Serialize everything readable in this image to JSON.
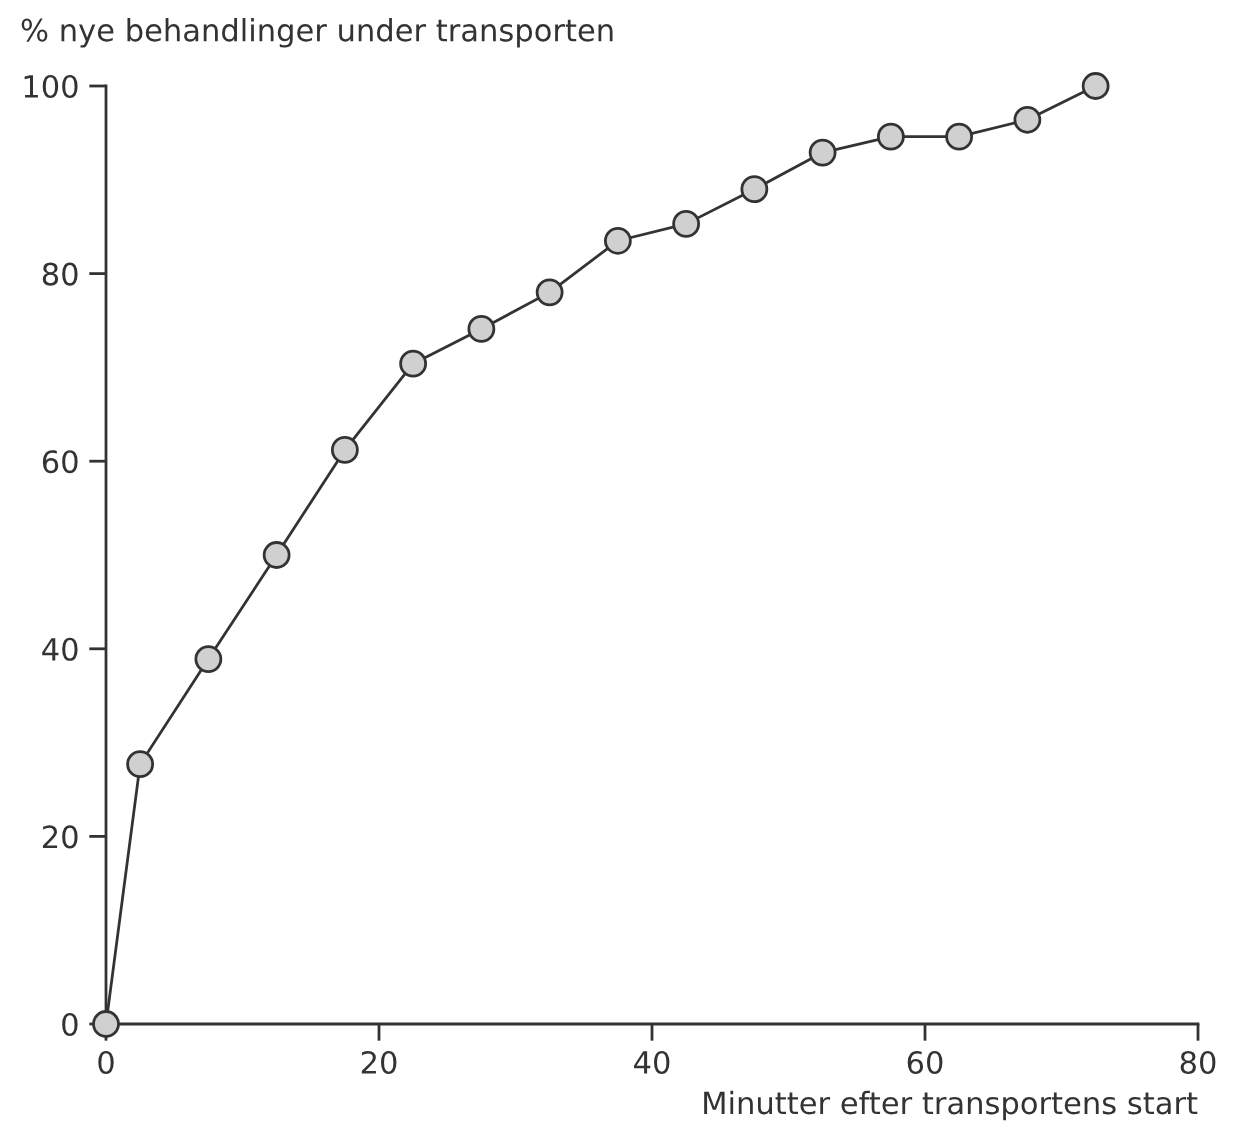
{
  "chart_data": {
    "type": "line",
    "xlabel": "Minutter efter transportens start",
    "ylabel": "% nye behandlinger under transporten",
    "x": [
      0,
      2.5,
      7.5,
      12.5,
      17.5,
      22.5,
      27.5,
      32.5,
      37.5,
      42.5,
      47.5,
      52.5,
      57.5,
      62.5,
      67.5,
      72.5
    ],
    "series": [
      {
        "color": "#333333",
        "values": [
          0,
          27.7,
          38.9,
          50,
          61.2,
          70.4,
          74.1,
          78,
          83.5,
          85.3,
          89,
          92.9,
          94.6,
          94.6,
          96.4,
          100
        ]
      }
    ],
    "xlim": [
      0,
      80
    ],
    "xticks": [
      0,
      20,
      40,
      60,
      80
    ],
    "ylim": [
      0,
      100
    ],
    "yticks": [
      0,
      20,
      40,
      60,
      80,
      100
    ],
    "marker": "circle",
    "line_style": "solid",
    "grid": false,
    "legend": false
  }
}
